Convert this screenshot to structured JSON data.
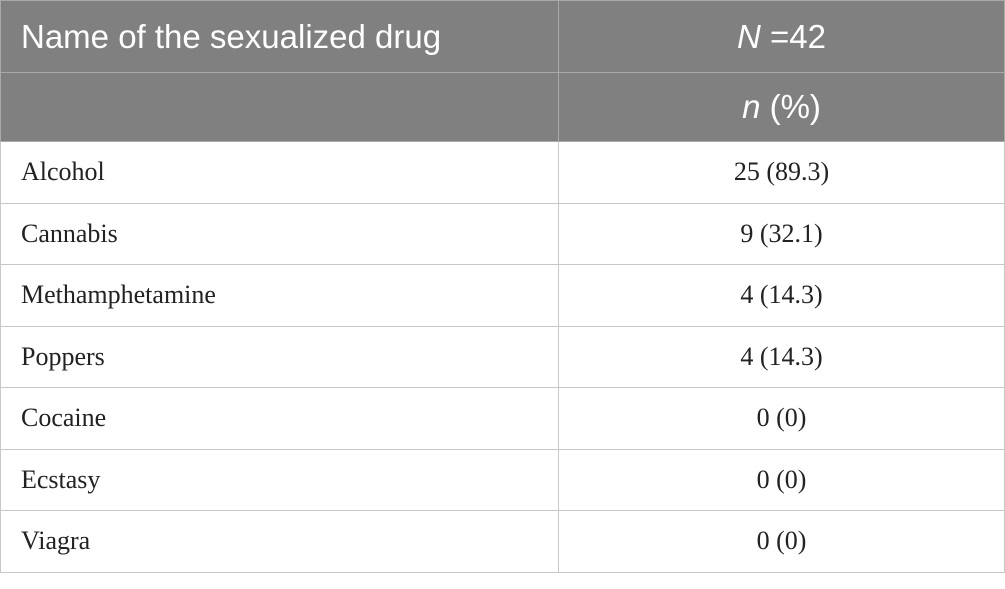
{
  "table": {
    "header": {
      "col1_label": "Name of the sexualized drug",
      "col2_N_symbol": "N",
      "col2_N_value": " =42",
      "sub_n_symbol": "n",
      "sub_percent": " (%)"
    },
    "rows": [
      {
        "name": "Alcohol",
        "value": "25 (89.3)"
      },
      {
        "name": "Cannabis",
        "value": "9 (32.1)"
      },
      {
        "name": "Methamphetamine",
        "value": "4 (14.3)"
      },
      {
        "name": "Poppers",
        "value": "4 (14.3)"
      },
      {
        "name": "Cocaine",
        "value": "0 (0)"
      },
      {
        "name": "Ecstasy",
        "value": "0 (0)"
      },
      {
        "name": "Viagra",
        "value": "0 (0)"
      }
    ]
  },
  "colors": {
    "header_bg": "#808080",
    "header_text": "#ffffff",
    "border": "#c8c8c8",
    "body_text": "#222222"
  }
}
